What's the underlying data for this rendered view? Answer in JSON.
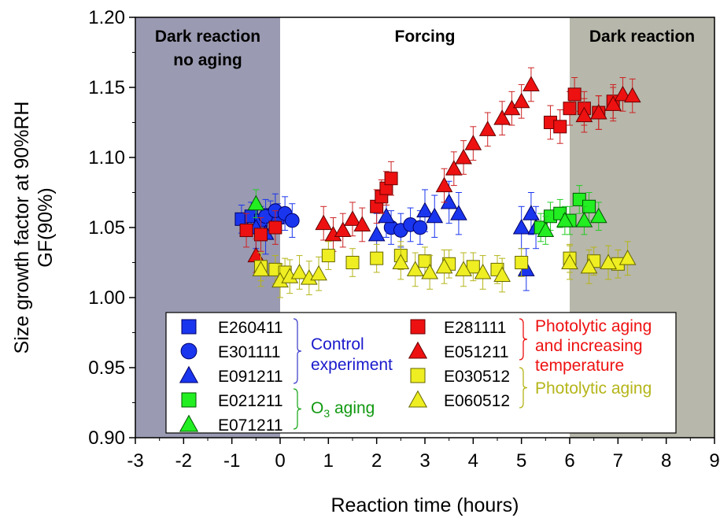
{
  "chart_data": {
    "type": "scatter",
    "title": "",
    "xlabel": "Reaction time (hours)",
    "ylabel_line1": "Size growth factor at 90%RH",
    "ylabel_line2": "GF(90%)",
    "xlim": [
      -3,
      9
    ],
    "ylim": [
      0.9,
      1.2
    ],
    "x_ticks": [
      "-3",
      "-2",
      "-1",
      "0",
      "1",
      "2",
      "3",
      "4",
      "5",
      "6",
      "7",
      "8",
      "9"
    ],
    "y_ticks": [
      "0.90",
      "0.95",
      "1.00",
      "1.05",
      "1.10",
      "1.15",
      "1.20"
    ],
    "regions": [
      {
        "label_line1": "Dark reaction",
        "label_line2": "no aging",
        "x0": -3,
        "x1": 0,
        "color": "#9a9ab2"
      },
      {
        "label_line1": "Forcing",
        "label_line2": "",
        "x0": 0,
        "x1": 6,
        "color": "#ffffff"
      },
      {
        "label_line1": "Dark reaction",
        "label_line2": "",
        "x0": 6,
        "x1": 9,
        "color": "#b7b7ab"
      }
    ],
    "legend_position": "bottom-center",
    "legend_groups": [
      {
        "label_line1": "Control",
        "label_line2": "experiment",
        "color": "#1a1acc",
        "bracket_color": "#4444cc"
      },
      {
        "label_line1": "O",
        "sub": "3",
        "label_rest": " aging",
        "color": "#119911",
        "bracket_color": "#22aa22"
      },
      {
        "label_line1": "Photolytic aging",
        "label_line2": "and increasing",
        "label_line3": "temperature",
        "color": "#ee1111",
        "bracket_color": "#ee1111"
      },
      {
        "label_line1": "Photolytic aging",
        "color": "#b5b51a",
        "bracket_color": "#b5b51a"
      }
    ],
    "series": [
      {
        "name": "E260411",
        "marker": "square",
        "fill": "#1a35ee",
        "stroke": "#000066",
        "err_color": "#1a35ee",
        "points": [
          [
            -0.8,
            1.056
          ],
          [
            -0.6,
            1.058
          ],
          [
            -0.4,
            1.055
          ],
          [
            -0.2,
            1.059
          ],
          [
            -0.05,
            1.057
          ]
        ],
        "err": 0.01
      },
      {
        "name": "E301111",
        "marker": "circle",
        "fill": "#1a35ee",
        "stroke": "#000066",
        "err_color": "#1a35ee",
        "points": [
          [
            -0.3,
            1.058
          ],
          [
            -0.1,
            1.062
          ],
          [
            0.1,
            1.06
          ],
          [
            0.25,
            1.055
          ],
          [
            2.3,
            1.05
          ],
          [
            2.5,
            1.048
          ],
          [
            2.7,
            1.052
          ],
          [
            2.9,
            1.05
          ]
        ],
        "err": 0.012
      },
      {
        "name": "E091211",
        "marker": "triangle",
        "fill": "#1a35ee",
        "stroke": "#000066",
        "err_color": "#1a35ee",
        "points": [
          [
            -0.5,
            1.05
          ],
          [
            -0.3,
            1.046
          ],
          [
            2.0,
            1.045
          ],
          [
            2.2,
            1.058
          ],
          [
            3.0,
            1.062
          ],
          [
            3.2,
            1.058
          ],
          [
            3.5,
            1.068
          ],
          [
            3.7,
            1.06
          ],
          [
            5.0,
            1.05
          ],
          [
            5.1,
            1.02
          ],
          [
            5.2,
            1.06
          ],
          [
            5.3,
            1.05
          ]
        ],
        "err": 0.015
      },
      {
        "name": "E021211",
        "marker": "square",
        "fill": "#22ee22",
        "stroke": "#005500",
        "err_color": "#22cc22",
        "points": [
          [
            5.4,
            1.05
          ],
          [
            5.6,
            1.058
          ],
          [
            5.8,
            1.06
          ],
          [
            6.0,
            1.055
          ],
          [
            6.2,
            1.07
          ],
          [
            6.4,
            1.065
          ]
        ],
        "err": 0.01
      },
      {
        "name": "E071211",
        "marker": "triangle",
        "fill": "#22ee22",
        "stroke": "#005500",
        "err_color": "#22cc22",
        "points": [
          [
            -0.5,
            1.067
          ],
          [
            5.5,
            1.048
          ],
          [
            5.9,
            1.055
          ],
          [
            6.3,
            1.055
          ],
          [
            6.6,
            1.058
          ]
        ],
        "err": 0.01
      },
      {
        "name": "E281111",
        "marker": "square",
        "fill": "#ee1111",
        "stroke": "#660000",
        "err_color": "#cc2222",
        "points": [
          [
            -0.7,
            1.048
          ],
          [
            -0.4,
            1.045
          ],
          [
            -0.1,
            1.05
          ],
          [
            2.0,
            1.065
          ],
          [
            2.1,
            1.072
          ],
          [
            2.2,
            1.078
          ],
          [
            2.3,
            1.085
          ],
          [
            5.6,
            1.125
          ],
          [
            5.8,
            1.122
          ],
          [
            6.0,
            1.135
          ],
          [
            6.1,
            1.145
          ],
          [
            6.3,
            1.135
          ],
          [
            6.6,
            1.132
          ],
          [
            6.9,
            1.14
          ]
        ],
        "err": 0.012
      },
      {
        "name": "E051211",
        "marker": "triangle",
        "fill": "#ee1111",
        "stroke": "#660000",
        "err_color": "#cc2222",
        "points": [
          [
            -0.5,
            1.03
          ],
          [
            0.9,
            1.053
          ],
          [
            1.1,
            1.045
          ],
          [
            1.3,
            1.048
          ],
          [
            1.5,
            1.056
          ],
          [
            1.7,
            1.052
          ],
          [
            3.4,
            1.08
          ],
          [
            3.6,
            1.092
          ],
          [
            3.8,
            1.1
          ],
          [
            4.0,
            1.11
          ],
          [
            4.3,
            1.12
          ],
          [
            4.6,
            1.128
          ],
          [
            4.8,
            1.135
          ],
          [
            5.0,
            1.14
          ],
          [
            5.2,
            1.152
          ],
          [
            6.3,
            1.13
          ],
          [
            6.6,
            1.132
          ],
          [
            6.9,
            1.138
          ],
          [
            7.1,
            1.145
          ],
          [
            7.3,
            1.144
          ]
        ],
        "err": 0.012
      },
      {
        "name": "E030512",
        "marker": "square",
        "fill": "#eeee22",
        "stroke": "#666600",
        "err_color": "#b5b51a",
        "points": [
          [
            -0.4,
            1.022
          ],
          [
            -0.1,
            1.02
          ],
          [
            0.1,
            1.018
          ],
          [
            1.0,
            1.03
          ],
          [
            1.5,
            1.025
          ],
          [
            2.0,
            1.028
          ],
          [
            2.5,
            1.03
          ],
          [
            3.0,
            1.026
          ],
          [
            3.5,
            1.024
          ],
          [
            4.0,
            1.022
          ],
          [
            4.5,
            1.02
          ],
          [
            5.0,
            1.025
          ],
          [
            6.0,
            1.028
          ],
          [
            6.5,
            1.026
          ],
          [
            7.0,
            1.024
          ]
        ],
        "err": 0.01
      },
      {
        "name": "E060512",
        "marker": "triangle",
        "fill": "#eeee22",
        "stroke": "#666600",
        "err_color": "#b5b51a",
        "points": [
          [
            -0.4,
            1.02
          ],
          [
            0.0,
            1.012
          ],
          [
            0.2,
            1.015
          ],
          [
            0.4,
            1.018
          ],
          [
            0.6,
            1.014
          ],
          [
            0.8,
            1.017
          ],
          [
            2.5,
            1.025
          ],
          [
            2.8,
            1.02
          ],
          [
            3.1,
            1.018
          ],
          [
            3.4,
            1.022
          ],
          [
            3.8,
            1.02
          ],
          [
            4.2,
            1.018
          ],
          [
            4.6,
            1.016
          ],
          [
            6.0,
            1.025
          ],
          [
            6.4,
            1.022
          ],
          [
            6.8,
            1.025
          ],
          [
            7.2,
            1.028
          ]
        ],
        "err": 0.012
      }
    ]
  }
}
